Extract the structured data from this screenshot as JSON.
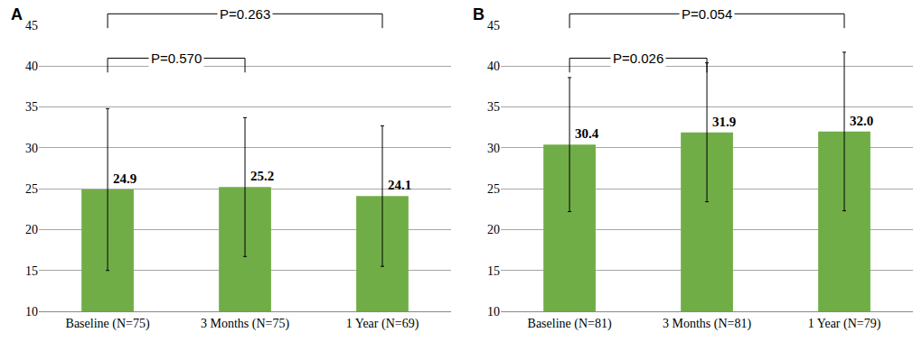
{
  "chart_data": [
    {
      "type": "bar",
      "title": "A",
      "categories": [
        "Baseline (N=75)",
        "3 Months (N=75)",
        "1 Year (N=69)"
      ],
      "values": [
        24.9,
        25.2,
        24.1
      ],
      "value_labels": [
        "24.9",
        "25.2",
        "24.1"
      ],
      "errors": [
        9.9,
        8.5,
        8.6
      ],
      "color": "#70ad47",
      "ylim": [
        10,
        45
      ],
      "yticks": [
        10,
        15,
        20,
        25,
        30,
        35,
        40,
        45
      ],
      "grid": true,
      "data_labels": true,
      "annotations": [
        {
          "text": "P=0.570",
          "between": [
            "Baseline (N=75)",
            "3 Months (N=75)"
          ]
        },
        {
          "text": "P=0.263",
          "between": [
            "Baseline (N=75)",
            "1 Year (N=69)"
          ]
        }
      ]
    },
    {
      "type": "bar",
      "title": "B",
      "categories": [
        "Baseline (N=81)",
        "3 Months (N=81)",
        "1 Year (N=79)"
      ],
      "values": [
        30.4,
        31.9,
        32.0
      ],
      "value_labels": [
        "30.4",
        "31.9",
        "32.0"
      ],
      "errors": [
        8.2,
        8.5,
        9.7
      ],
      "color": "#70ad47",
      "ylim": [
        10,
        45
      ],
      "yticks": [
        10,
        15,
        20,
        25,
        30,
        35,
        40,
        45
      ],
      "grid": true,
      "data_labels": true,
      "annotations": [
        {
          "text": "P=0.026",
          "between": [
            "Baseline (N=81)",
            "3 Months (N=81)"
          ]
        },
        {
          "text": "P=0.054",
          "between": [
            "Baseline (N=81)",
            "1 Year (N=79)"
          ]
        }
      ]
    }
  ]
}
